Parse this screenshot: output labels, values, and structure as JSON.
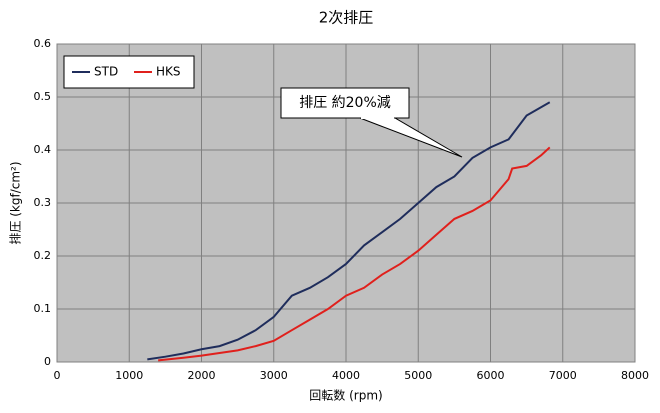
{
  "chart_data": {
    "type": "line",
    "title": "2次排圧",
    "x_label": "回転数 (rpm)",
    "y_label": "排圧 (kgf/cm²)",
    "annotation": "排圧 約20%減",
    "xlim": [
      0,
      8000
    ],
    "xticks": [
      0,
      1000,
      2000,
      3000,
      4000,
      5000,
      6000,
      7000,
      8000
    ],
    "ylim": [
      0,
      0.6
    ],
    "yticks": [
      0,
      0.1,
      0.2,
      0.3,
      0.4,
      0.5,
      0.6
    ],
    "grid": true,
    "legend": "top-left",
    "series": [
      {
        "name": "STD",
        "color": "#1f2d5c",
        "x": [
          1250,
          1500,
          1750,
          2000,
          2250,
          2500,
          2750,
          3000,
          3250,
          3500,
          3750,
          4000,
          4250,
          4500,
          4750,
          5000,
          5250,
          5500,
          5750,
          6000,
          6250,
          6500,
          6820
        ],
        "values": [
          0.005,
          0.01,
          0.016,
          0.024,
          0.03,
          0.042,
          0.06,
          0.085,
          0.125,
          0.14,
          0.16,
          0.185,
          0.22,
          0.245,
          0.27,
          0.3,
          0.33,
          0.35,
          0.385,
          0.405,
          0.42,
          0.465,
          0.49
        ]
      },
      {
        "name": "HKS",
        "color": "#e0201c",
        "x": [
          1400,
          1750,
          2000,
          2500,
          2750,
          3000,
          3250,
          3500,
          3750,
          4000,
          4250,
          4500,
          4750,
          5000,
          5250,
          5500,
          5750,
          6000,
          6250,
          6300,
          6500,
          6700,
          6820
        ],
        "values": [
          0.003,
          0.008,
          0.012,
          0.022,
          0.03,
          0.04,
          0.06,
          0.08,
          0.1,
          0.125,
          0.14,
          0.165,
          0.185,
          0.21,
          0.24,
          0.27,
          0.285,
          0.305,
          0.345,
          0.365,
          0.37,
          0.39,
          0.405
        ]
      }
    ]
  }
}
